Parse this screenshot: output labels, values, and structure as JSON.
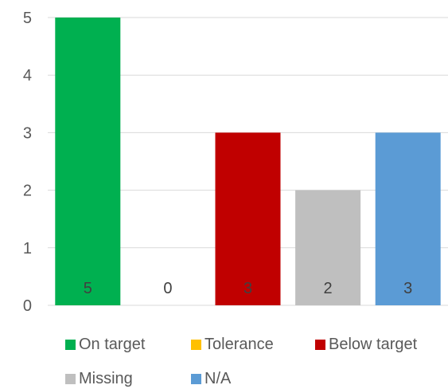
{
  "chart_data": {
    "type": "bar",
    "categories": [
      "On target",
      "Tolerance",
      "Below target",
      "Missing",
      "N/A"
    ],
    "values": [
      5,
      0,
      3,
      2,
      3
    ],
    "data_labels": [
      "5",
      "0",
      "3",
      "2",
      "3"
    ],
    "colors": [
      "#00b050",
      "#ffc000",
      "#c00000",
      "#bfbfbf",
      "#5b9bd5"
    ],
    "ylim": [
      0,
      5
    ],
    "yticks": [
      "0",
      "1",
      "2",
      "3",
      "4",
      "5"
    ],
    "grid": true,
    "legend_position": "bottom",
    "title": "",
    "xlabel": "",
    "ylabel": ""
  },
  "legend": {
    "items": [
      {
        "label": "On target",
        "color": "#00b050"
      },
      {
        "label": "Tolerance",
        "color": "#ffc000"
      },
      {
        "label": "Below target",
        "color": "#c00000"
      },
      {
        "label": "Missing",
        "color": "#bfbfbf"
      },
      {
        "label": "N/A",
        "color": "#5b9bd5"
      }
    ]
  }
}
